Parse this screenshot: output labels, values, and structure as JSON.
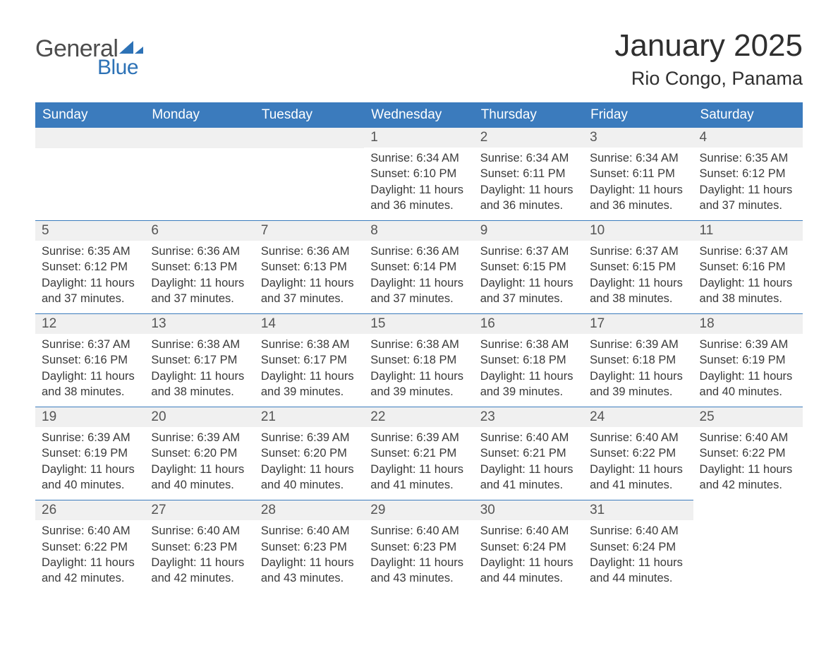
{
  "logo": {
    "text_general": "General",
    "text_blue": "Blue",
    "flag_color": "#2d72b6"
  },
  "title": "January 2025",
  "location": "Rio Congo, Panama",
  "colors": {
    "header_bg": "#3b7bbd",
    "header_text": "#ffffff",
    "daynum_bg": "#f0f0f0",
    "daynum_border": "#3b7bbd",
    "body_bg": "#ffffff",
    "text": "#3a3a3a",
    "daynum_text": "#555555"
  },
  "typography": {
    "title_fontsize": 44,
    "location_fontsize": 27,
    "header_fontsize": 19,
    "daynum_fontsize": 19,
    "cell_fontsize": 16.5
  },
  "weekdays": [
    "Sunday",
    "Monday",
    "Tuesday",
    "Wednesday",
    "Thursday",
    "Friday",
    "Saturday"
  ],
  "weeks": [
    [
      null,
      null,
      null,
      {
        "n": "1",
        "sunrise": "Sunrise: 6:34 AM",
        "sunset": "Sunset: 6:10 PM",
        "daylight1": "Daylight: 11 hours",
        "daylight2": "and 36 minutes."
      },
      {
        "n": "2",
        "sunrise": "Sunrise: 6:34 AM",
        "sunset": "Sunset: 6:11 PM",
        "daylight1": "Daylight: 11 hours",
        "daylight2": "and 36 minutes."
      },
      {
        "n": "3",
        "sunrise": "Sunrise: 6:34 AM",
        "sunset": "Sunset: 6:11 PM",
        "daylight1": "Daylight: 11 hours",
        "daylight2": "and 36 minutes."
      },
      {
        "n": "4",
        "sunrise": "Sunrise: 6:35 AM",
        "sunset": "Sunset: 6:12 PM",
        "daylight1": "Daylight: 11 hours",
        "daylight2": "and 37 minutes."
      }
    ],
    [
      {
        "n": "5",
        "sunrise": "Sunrise: 6:35 AM",
        "sunset": "Sunset: 6:12 PM",
        "daylight1": "Daylight: 11 hours",
        "daylight2": "and 37 minutes."
      },
      {
        "n": "6",
        "sunrise": "Sunrise: 6:36 AM",
        "sunset": "Sunset: 6:13 PM",
        "daylight1": "Daylight: 11 hours",
        "daylight2": "and 37 minutes."
      },
      {
        "n": "7",
        "sunrise": "Sunrise: 6:36 AM",
        "sunset": "Sunset: 6:13 PM",
        "daylight1": "Daylight: 11 hours",
        "daylight2": "and 37 minutes."
      },
      {
        "n": "8",
        "sunrise": "Sunrise: 6:36 AM",
        "sunset": "Sunset: 6:14 PM",
        "daylight1": "Daylight: 11 hours",
        "daylight2": "and 37 minutes."
      },
      {
        "n": "9",
        "sunrise": "Sunrise: 6:37 AM",
        "sunset": "Sunset: 6:15 PM",
        "daylight1": "Daylight: 11 hours",
        "daylight2": "and 37 minutes."
      },
      {
        "n": "10",
        "sunrise": "Sunrise: 6:37 AM",
        "sunset": "Sunset: 6:15 PM",
        "daylight1": "Daylight: 11 hours",
        "daylight2": "and 38 minutes."
      },
      {
        "n": "11",
        "sunrise": "Sunrise: 6:37 AM",
        "sunset": "Sunset: 6:16 PM",
        "daylight1": "Daylight: 11 hours",
        "daylight2": "and 38 minutes."
      }
    ],
    [
      {
        "n": "12",
        "sunrise": "Sunrise: 6:37 AM",
        "sunset": "Sunset: 6:16 PM",
        "daylight1": "Daylight: 11 hours",
        "daylight2": "and 38 minutes."
      },
      {
        "n": "13",
        "sunrise": "Sunrise: 6:38 AM",
        "sunset": "Sunset: 6:17 PM",
        "daylight1": "Daylight: 11 hours",
        "daylight2": "and 38 minutes."
      },
      {
        "n": "14",
        "sunrise": "Sunrise: 6:38 AM",
        "sunset": "Sunset: 6:17 PM",
        "daylight1": "Daylight: 11 hours",
        "daylight2": "and 39 minutes."
      },
      {
        "n": "15",
        "sunrise": "Sunrise: 6:38 AM",
        "sunset": "Sunset: 6:18 PM",
        "daylight1": "Daylight: 11 hours",
        "daylight2": "and 39 minutes."
      },
      {
        "n": "16",
        "sunrise": "Sunrise: 6:38 AM",
        "sunset": "Sunset: 6:18 PM",
        "daylight1": "Daylight: 11 hours",
        "daylight2": "and 39 minutes."
      },
      {
        "n": "17",
        "sunrise": "Sunrise: 6:39 AM",
        "sunset": "Sunset: 6:18 PM",
        "daylight1": "Daylight: 11 hours",
        "daylight2": "and 39 minutes."
      },
      {
        "n": "18",
        "sunrise": "Sunrise: 6:39 AM",
        "sunset": "Sunset: 6:19 PM",
        "daylight1": "Daylight: 11 hours",
        "daylight2": "and 40 minutes."
      }
    ],
    [
      {
        "n": "19",
        "sunrise": "Sunrise: 6:39 AM",
        "sunset": "Sunset: 6:19 PM",
        "daylight1": "Daylight: 11 hours",
        "daylight2": "and 40 minutes."
      },
      {
        "n": "20",
        "sunrise": "Sunrise: 6:39 AM",
        "sunset": "Sunset: 6:20 PM",
        "daylight1": "Daylight: 11 hours",
        "daylight2": "and 40 minutes."
      },
      {
        "n": "21",
        "sunrise": "Sunrise: 6:39 AM",
        "sunset": "Sunset: 6:20 PM",
        "daylight1": "Daylight: 11 hours",
        "daylight2": "and 40 minutes."
      },
      {
        "n": "22",
        "sunrise": "Sunrise: 6:39 AM",
        "sunset": "Sunset: 6:21 PM",
        "daylight1": "Daylight: 11 hours",
        "daylight2": "and 41 minutes."
      },
      {
        "n": "23",
        "sunrise": "Sunrise: 6:40 AM",
        "sunset": "Sunset: 6:21 PM",
        "daylight1": "Daylight: 11 hours",
        "daylight2": "and 41 minutes."
      },
      {
        "n": "24",
        "sunrise": "Sunrise: 6:40 AM",
        "sunset": "Sunset: 6:22 PM",
        "daylight1": "Daylight: 11 hours",
        "daylight2": "and 41 minutes."
      },
      {
        "n": "25",
        "sunrise": "Sunrise: 6:40 AM",
        "sunset": "Sunset: 6:22 PM",
        "daylight1": "Daylight: 11 hours",
        "daylight2": "and 42 minutes."
      }
    ],
    [
      {
        "n": "26",
        "sunrise": "Sunrise: 6:40 AM",
        "sunset": "Sunset: 6:22 PM",
        "daylight1": "Daylight: 11 hours",
        "daylight2": "and 42 minutes."
      },
      {
        "n": "27",
        "sunrise": "Sunrise: 6:40 AM",
        "sunset": "Sunset: 6:23 PM",
        "daylight1": "Daylight: 11 hours",
        "daylight2": "and 42 minutes."
      },
      {
        "n": "28",
        "sunrise": "Sunrise: 6:40 AM",
        "sunset": "Sunset: 6:23 PM",
        "daylight1": "Daylight: 11 hours",
        "daylight2": "and 43 minutes."
      },
      {
        "n": "29",
        "sunrise": "Sunrise: 6:40 AM",
        "sunset": "Sunset: 6:23 PM",
        "daylight1": "Daylight: 11 hours",
        "daylight2": "and 43 minutes."
      },
      {
        "n": "30",
        "sunrise": "Sunrise: 6:40 AM",
        "sunset": "Sunset: 6:24 PM",
        "daylight1": "Daylight: 11 hours",
        "daylight2": "and 44 minutes."
      },
      {
        "n": "31",
        "sunrise": "Sunrise: 6:40 AM",
        "sunset": "Sunset: 6:24 PM",
        "daylight1": "Daylight: 11 hours",
        "daylight2": "and 44 minutes."
      },
      null
    ]
  ]
}
